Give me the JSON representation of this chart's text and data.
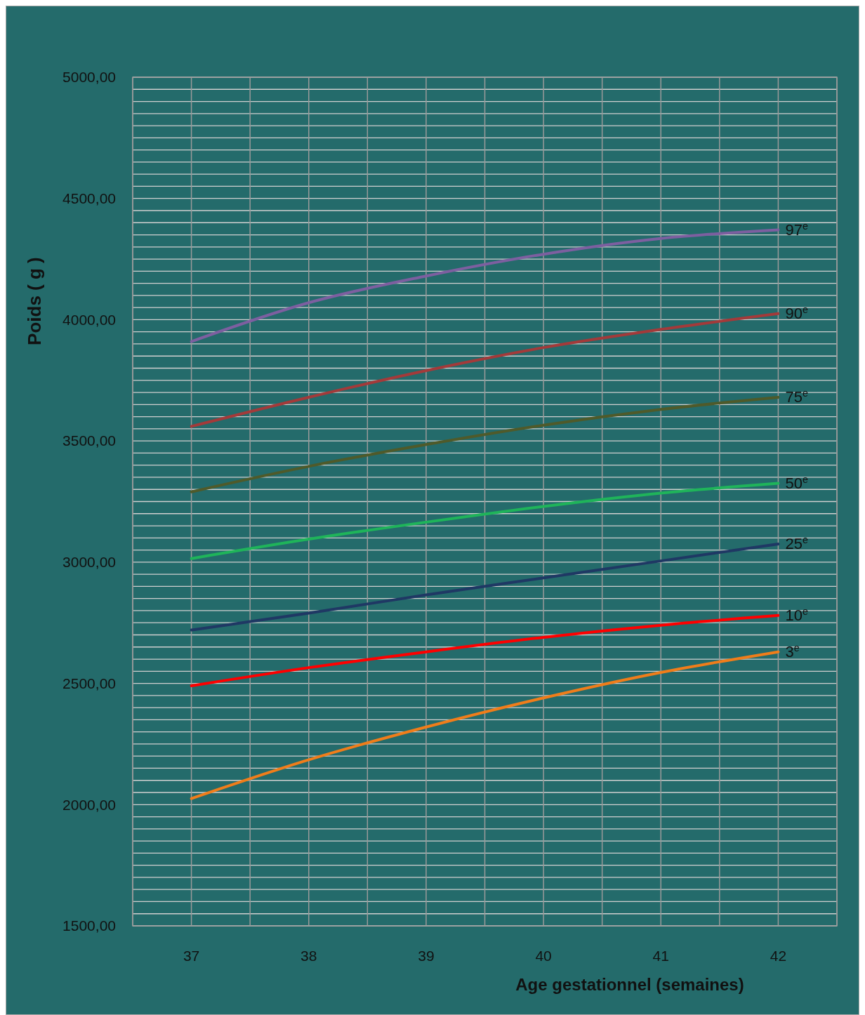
{
  "chart_data": {
    "type": "line",
    "xlabel": "Age gestationnel (semaines)",
    "ylabel": "Poids ( g )",
    "x": [
      37,
      38,
      39,
      40,
      41,
      42
    ],
    "xlim": [
      36.5,
      42.5
    ],
    "xticks": [
      {
        "value": 36.5,
        "label": null
      },
      37,
      {
        "value": 37.5,
        "label": null
      },
      38,
      {
        "value": 38.5,
        "label": null
      },
      39,
      {
        "value": 39.5,
        "label": null
      },
      40,
      {
        "value": 40.5,
        "label": null
      },
      41,
      {
        "value": 41.5,
        "label": null
      },
      42,
      {
        "value": 42.5,
        "label": null
      }
    ],
    "ylim": [
      1500,
      5000
    ],
    "yticks": [
      {
        "value": 1500,
        "label": "1500,00"
      },
      {
        "value": 2000,
        "label": "2000,00"
      },
      {
        "value": 2500,
        "label": "2500,00"
      },
      {
        "value": 3000,
        "label": "3000,00"
      },
      {
        "value": 3500,
        "label": "3500,00"
      },
      {
        "value": 4000,
        "label": "4000,00"
      },
      {
        "value": 4500,
        "label": "4500,00"
      },
      {
        "value": 5000,
        "label": "5000,00"
      }
    ],
    "grid": true,
    "legend": false,
    "marker": "none",
    "line_style": "solid",
    "series": [
      {
        "name": "97$^{e}$",
        "color": "#7d5fa0",
        "values": [
          3910,
          4070,
          4180,
          4270,
          4335,
          4370
        ]
      },
      {
        "name": "90$^{e}$",
        "color": "#a33a3a",
        "values": [
          3560,
          3680,
          3790,
          3885,
          3960,
          4025
        ]
      },
      {
        "name": "75$^{e}$",
        "color": "#4f5a2a",
        "values": [
          3290,
          3395,
          3485,
          3565,
          3630,
          3680
        ]
      },
      {
        "name": "50$^{e}$",
        "color": "#1fb45a",
        "values": [
          3015,
          3095,
          3165,
          3230,
          3285,
          3325
        ]
      },
      {
        "name": "25$^{e}$",
        "color": "#1f3864",
        "values": [
          2720,
          2790,
          2865,
          2935,
          3005,
          3075
        ]
      },
      {
        "name": "10$^{e}$",
        "color": "#ff0000",
        "values": [
          2490,
          2565,
          2630,
          2690,
          2740,
          2780
        ]
      },
      {
        "name": "3$^{e}$",
        "color": "#f07d1a",
        "values": [
          2025,
          2185,
          2320,
          2440,
          2545,
          2630
        ]
      }
    ]
  }
}
